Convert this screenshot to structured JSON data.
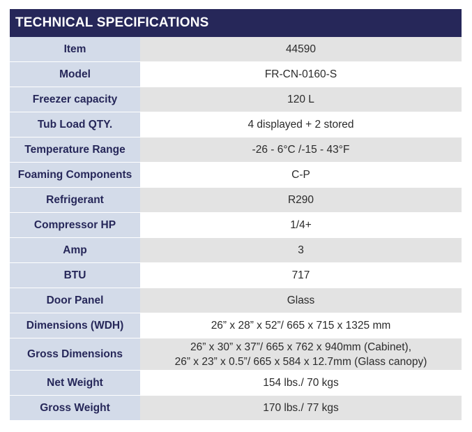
{
  "title": "TECHNICAL SPECIFICATIONS",
  "rows": [
    {
      "label": "Item",
      "value": [
        "44590"
      ]
    },
    {
      "label": "Model",
      "value": [
        "FR-CN-0160-S"
      ]
    },
    {
      "label": "Freezer capacity",
      "value": [
        "120 L"
      ]
    },
    {
      "label": "Tub Load QTY.",
      "value": [
        "4 displayed + 2 stored"
      ]
    },
    {
      "label": "Temperature Range",
      "value": [
        "-26 - 6°C /-15 - 43°F"
      ]
    },
    {
      "label": "Foaming Components",
      "value": [
        "C-P"
      ]
    },
    {
      "label": "Refrigerant",
      "value": [
        "R290"
      ]
    },
    {
      "label": "Compressor HP",
      "value": [
        "1/4+"
      ]
    },
    {
      "label": "Amp",
      "value": [
        "3"
      ]
    },
    {
      "label": "BTU",
      "value": [
        "717"
      ]
    },
    {
      "label": "Door Panel",
      "value": [
        "Glass"
      ]
    },
    {
      "label": "Dimensions (WDH)",
      "value": [
        "26” x 28” x 52”/ 665 x 715 x 1325 mm"
      ]
    },
    {
      "label": "Gross Dimensions",
      "value": [
        "26” x 30” x 37”/ 665 x 762 x 940mm (Cabinet),",
        "26” x 23” x 0.5”/ 665 x 584 x 12.7mm (Glass canopy)"
      ]
    },
    {
      "label": "Net Weight",
      "value": [
        "154 lbs./ 70 kgs"
      ]
    },
    {
      "label": "Gross Weight",
      "value": [
        "170 lbs./ 77 kgs"
      ]
    }
  ],
  "colors": {
    "header_bg": "#262759",
    "label_bg": "#d3dbe9",
    "label_text": "#262759",
    "alt_row_bg": "#e3e3e3"
  }
}
